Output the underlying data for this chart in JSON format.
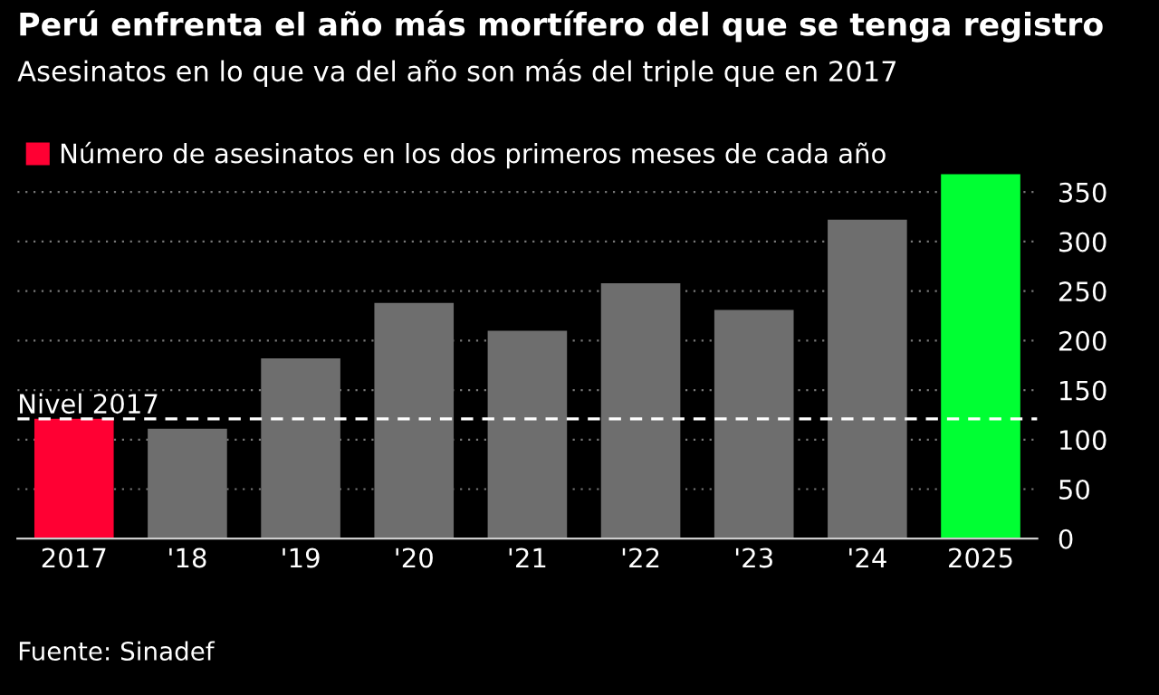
{
  "chart_data": {
    "type": "bar",
    "title": "Perú enfrenta el año más mortífero del que se tenga registro",
    "subtitle": "Asesinatos en lo que va del año son más del triple que en 2017",
    "categories": [
      "2017",
      "'18",
      "'19",
      "'20",
      "'21",
      "'22",
      "'23",
      "'24",
      "2025"
    ],
    "series": [
      {
        "name": "Número de asesinatos en los dos primeros meses de cada año",
        "color": "#ff0033",
        "colors": [
          "#ff0033",
          "#6e6e6e",
          "#6e6e6e",
          "#6e6e6e",
          "#6e6e6e",
          "#6e6e6e",
          "#6e6e6e",
          "#6e6e6e",
          "#00ff33"
        ],
        "values": [
          121,
          111,
          182,
          238,
          210,
          258,
          231,
          322,
          368
        ]
      }
    ],
    "ylim": [
      0,
      372
    ],
    "yticks": [
      0,
      50,
      100,
      150,
      200,
      250,
      300,
      350
    ],
    "grid": "y",
    "legend": "top left",
    "ref_lines": [
      {
        "axis": "y",
        "value": 121,
        "label": "Nivel 2017",
        "color": "#ffffff",
        "line_style": "dashed"
      }
    ],
    "annotations": [
      "Fuente: Sinadef"
    ]
  }
}
